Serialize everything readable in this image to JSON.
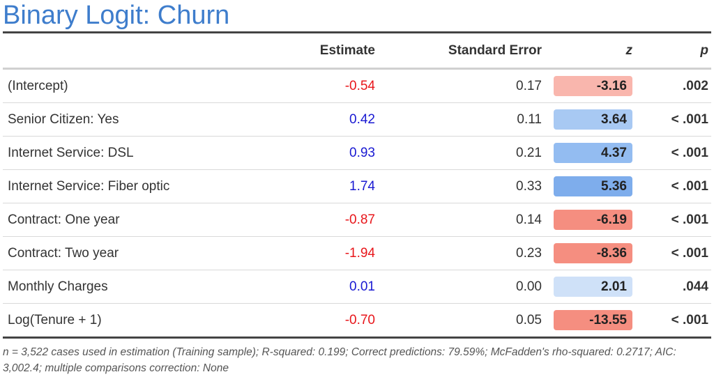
{
  "title": "Binary Logit: Churn",
  "columns": {
    "label": "",
    "estimate": "Estimate",
    "se": "Standard Error",
    "z": "z",
    "p": "p"
  },
  "rows": [
    {
      "label": "(Intercept)",
      "estimate": "-0.54",
      "se": "0.17",
      "z": "-3.16",
      "p": ".002",
      "sign": "neg",
      "z_color": "#f9b6ad"
    },
    {
      "label": "Senior Citizen: Yes",
      "estimate": "0.42",
      "se": "0.11",
      "z": "3.64",
      "p": "< .001",
      "sign": "pos",
      "z_color": "#a8c9f3"
    },
    {
      "label": "Internet Service: DSL",
      "estimate": "0.93",
      "se": "0.21",
      "z": "4.37",
      "p": "< .001",
      "sign": "pos",
      "z_color": "#93bcf1"
    },
    {
      "label": "Internet Service: Fiber optic",
      "estimate": "1.74",
      "se": "0.33",
      "z": "5.36",
      "p": "< .001",
      "sign": "pos",
      "z_color": "#7eadec"
    },
    {
      "label": "Contract: One year",
      "estimate": "-0.87",
      "se": "0.14",
      "z": "-6.19",
      "p": "< .001",
      "sign": "neg",
      "z_color": "#f58e80"
    },
    {
      "label": "Contract: Two year",
      "estimate": "-1.94",
      "se": "0.23",
      "z": "-8.36",
      "p": "< .001",
      "sign": "neg",
      "z_color": "#f58e80"
    },
    {
      "label": "Monthly Charges",
      "estimate": "0.01",
      "se": "0.00",
      "z": "2.01",
      "p": ".044",
      "sign": "pos",
      "z_color": "#cfe1f8"
    },
    {
      "label": "Log(Tenure + 1)",
      "estimate": "-0.70",
      "se": "0.05",
      "z": "-13.55",
      "p": "< .001",
      "sign": "neg",
      "z_color": "#f58e80"
    }
  ],
  "footnote": "n = 3,522 cases used in estimation (Training sample); R-squared: 0.199; Correct predictions: 79.59%; McFadden's rho-squared: 0.2717; AIC: 3,002.4; multiple comparisons correction: None"
}
